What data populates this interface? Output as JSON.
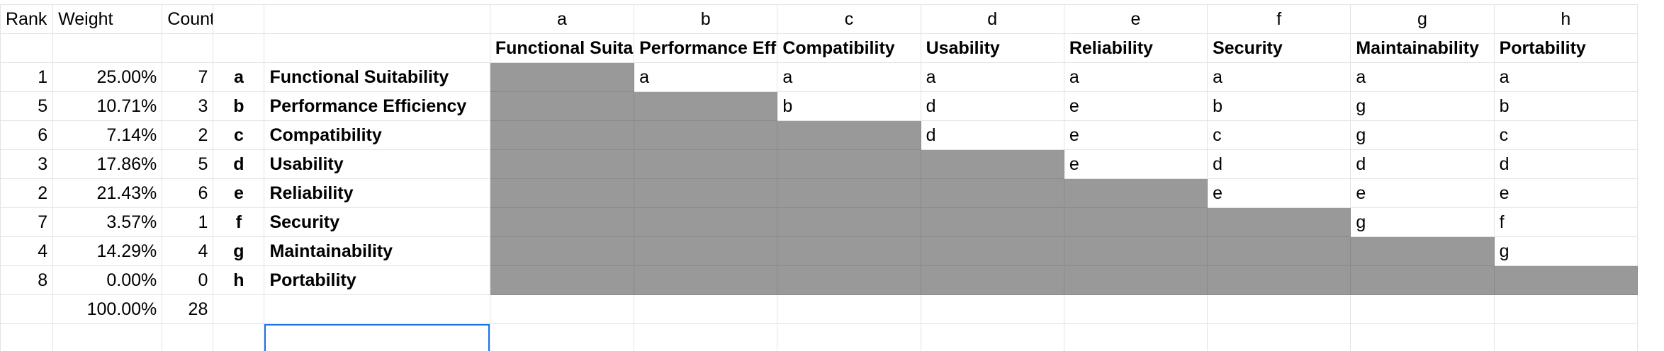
{
  "header_labels": {
    "rank": "Rank",
    "weight": "Weight",
    "count": "Count"
  },
  "column_letters": [
    "a",
    "b",
    "c",
    "d",
    "e",
    "f",
    "g",
    "h"
  ],
  "column_names": [
    "Functional Suitability",
    "Performance Efficiency",
    "Compatibility",
    "Usability",
    "Reliability",
    "Security",
    "Maintainability",
    "Portability"
  ],
  "rows": [
    {
      "rank": "1",
      "weight": "25.00%",
      "count": "7",
      "letter": "a",
      "name": "Functional Suitability",
      "matrix": [
        "",
        "a",
        "a",
        "a",
        "a",
        "a",
        "a",
        "a"
      ]
    },
    {
      "rank": "5",
      "weight": "10.71%",
      "count": "3",
      "letter": "b",
      "name": "Performance Efficiency",
      "matrix": [
        "",
        "",
        "b",
        "d",
        "e",
        "b",
        "g",
        "b"
      ]
    },
    {
      "rank": "6",
      "weight": "7.14%",
      "count": "2",
      "letter": "c",
      "name": "Compatibility",
      "matrix": [
        "",
        "",
        "",
        "d",
        "e",
        "c",
        "g",
        "c"
      ]
    },
    {
      "rank": "3",
      "weight": "17.86%",
      "count": "5",
      "letter": "d",
      "name": "Usability",
      "matrix": [
        "",
        "",
        "",
        "",
        "e",
        "d",
        "d",
        "d"
      ]
    },
    {
      "rank": "2",
      "weight": "21.43%",
      "count": "6",
      "letter": "e",
      "name": "Reliability",
      "matrix": [
        "",
        "",
        "",
        "",
        "",
        "e",
        "e",
        "e"
      ]
    },
    {
      "rank": "7",
      "weight": "3.57%",
      "count": "1",
      "letter": "f",
      "name": "Security",
      "matrix": [
        "",
        "",
        "",
        "",
        "",
        "",
        "g",
        "f"
      ]
    },
    {
      "rank": "4",
      "weight": "14.29%",
      "count": "4",
      "letter": "g",
      "name": "Maintainability",
      "matrix": [
        "",
        "",
        "",
        "",
        "",
        "",
        "",
        "g"
      ]
    },
    {
      "rank": "8",
      "weight": "0.00%",
      "count": "0",
      "letter": "h",
      "name": "Portability",
      "matrix": [
        "",
        "",
        "",
        "",
        "",
        "",
        "",
        ""
      ]
    }
  ],
  "totals": {
    "weight": "100.00%",
    "count": "28"
  },
  "colors": {
    "gridline": "#e2e3e3",
    "shaded_cell": "#999999",
    "selection": "#1a73e8"
  }
}
